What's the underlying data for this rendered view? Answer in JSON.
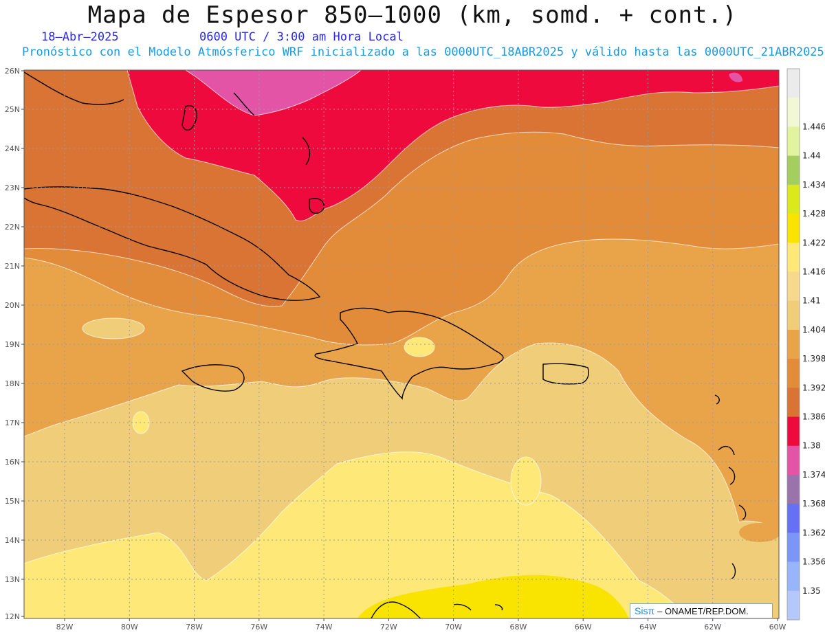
{
  "title": "Mapa de Espesor 850–1000 (km, somd. + cont.)",
  "date": "18–Abr–2025",
  "valid_time": "0600 UTC / 3:00 am Hora Local",
  "model_info": "Pronóstico con el Modelo Atmósferico WRF inicializado a las 0000UTC_18ABR2025 y válido hasta las  0000UTC_21ABR2025",
  "credit": {
    "logo": "Sisπ",
    "org": "– ONAMET/REP.DOM."
  },
  "lat_labels": [
    "26N",
    "25N",
    "24N",
    "23N",
    "22N",
    "21N",
    "20N",
    "19N",
    "18N",
    "17N",
    "16N",
    "15N",
    "14N",
    "13N",
    "12N"
  ],
  "lon_labels": [
    "82W",
    "80W",
    "78W",
    "76W",
    "74W",
    "72W",
    "70W",
    "68W",
    "66W",
    "64W",
    "62W",
    "60W"
  ],
  "colorbar": [
    {
      "label": "",
      "color": "#ebebeb"
    },
    {
      "label": "1.446",
      "color": "#f2f7d6"
    },
    {
      "label": "1.44",
      "color": "#e2f3a0"
    },
    {
      "label": "1.434",
      "color": "#a4cf5e"
    },
    {
      "label": "1.428",
      "color": "#dbe81a"
    },
    {
      "label": "1.422",
      "color": "#f8e400"
    },
    {
      "label": "1.416",
      "color": "#fde878"
    },
    {
      "label": "1.41",
      "color": "#f7d88c"
    },
    {
      "label": "1.404",
      "color": "#f0cd78"
    },
    {
      "label": "1.398",
      "color": "#e9a44a"
    },
    {
      "label": "1.392",
      "color": "#e28c3a"
    },
    {
      "label": "1.386",
      "color": "#da7434"
    },
    {
      "label": "1.38",
      "color": "#ee0a3c"
    },
    {
      "label": "1.374",
      "color": "#e354a6"
    },
    {
      "label": "1.368",
      "color": "#9a73ac"
    },
    {
      "label": "1.362",
      "color": "#6670f4"
    },
    {
      "label": "1.356",
      "color": "#7b96f7"
    },
    {
      "label": "1.35",
      "color": "#98b4fb"
    },
    {
      "label": "",
      "color": "#b5c8fb"
    }
  ],
  "field_colors": {
    "magenta": "#e354a6",
    "red": "#ee0a3c",
    "dark_orange": "#da7434",
    "orange": "#e28c3a",
    "light_orange": "#e9a44a",
    "tan": "#f0cd78",
    "light_yellow": "#fde878",
    "yellow": "#f8e400"
  }
}
